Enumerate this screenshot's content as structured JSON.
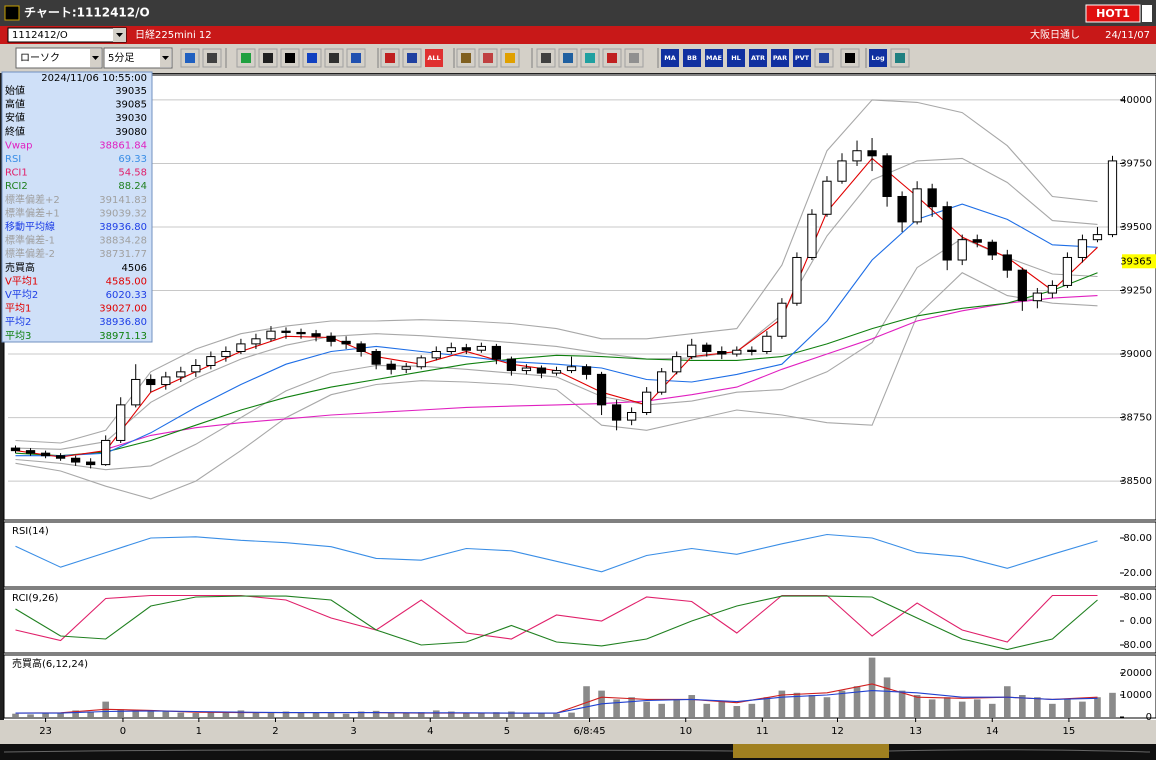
{
  "window": {
    "title": "チャート:1112412/O",
    "hot": "HOT1"
  },
  "header": {
    "code": "1112412/O",
    "name": "日経225mini 12",
    "session": "大阪日通し",
    "date": "24/11/07"
  },
  "toolbar": {
    "chart_type": "ローソク",
    "interval": "5分足",
    "buttons": [
      "ALL",
      "MA",
      "BB",
      "MAE",
      "HL",
      "ATR",
      "PAR",
      "PVT",
      "Log"
    ]
  },
  "info_panel": {
    "datetime": "2024/11/06  10:55:00",
    "rows": [
      {
        "label": "始値",
        "value": "39035",
        "color": "#000"
      },
      {
        "label": "高値",
        "value": "39085",
        "color": "#000"
      },
      {
        "label": "安値",
        "value": "39030",
        "color": "#000"
      },
      {
        "label": "終値",
        "value": "39080",
        "color": "#000"
      },
      {
        "label": "Vwap",
        "value": "38861.84",
        "color": "#e020c0"
      },
      {
        "label": "RSI",
        "value": "69.33",
        "color": "#3a8ee6"
      },
      {
        "label": "RCI1",
        "value": "54.58",
        "color": "#e0206a"
      },
      {
        "label": "RCI2",
        "value": "88.24",
        "color": "#208020"
      },
      {
        "label": "標準偏差+2",
        "value": "39141.83",
        "color": "#a0a0a0"
      },
      {
        "label": "標準偏差+1",
        "value": "39039.32",
        "color": "#a0a0a0"
      },
      {
        "label": "移動平均線",
        "value": "38936.80",
        "color": "#1e3ee6"
      },
      {
        "label": "標準偏差-1",
        "value": "38834.28",
        "color": "#a0a0a0"
      },
      {
        "label": "標準偏差-2",
        "value": "38731.77",
        "color": "#a0a0a0"
      },
      {
        "label": "売買高",
        "value": "4506",
        "color": "#000"
      },
      {
        "label": "V平均1",
        "value": "4585.00",
        "color": "#e00000"
      },
      {
        "label": "V平均2",
        "value": "6020.33",
        "color": "#1e3ee6"
      },
      {
        "label": "平均1",
        "value": "39027.00",
        "color": "#e00000"
      },
      {
        "label": "平均2",
        "value": "38936.80",
        "color": "#1e3ee6"
      },
      {
        "label": "平均3",
        "value": "38971.13",
        "color": "#108010"
      }
    ]
  },
  "chart_data": [
    {
      "type": "candlestick",
      "xlim": [
        -0.5,
        73.5
      ],
      "ylim": [
        38347,
        40098
      ],
      "yticks": [
        38500,
        38750,
        39000,
        39250,
        39500,
        39750,
        40000
      ],
      "grid": true,
      "last_price": 39365,
      "up_color": "#ffffff",
      "down_color": "#000000",
      "x": [
        0,
        3,
        6,
        9,
        12,
        15,
        18,
        21,
        24,
        27,
        30,
        33,
        36,
        39,
        42,
        45,
        48,
        51,
        54,
        57,
        60,
        63,
        66,
        69,
        72
      ],
      "ohlc": [
        [
          38630,
          38640,
          38610,
          38620
        ],
        [
          38620,
          38630,
          38600,
          38610
        ],
        [
          38610,
          38620,
          38590,
          38600
        ],
        [
          38600,
          38610,
          38580,
          38590
        ],
        [
          38590,
          38600,
          38560,
          38575
        ],
        [
          38575,
          38590,
          38550,
          38565
        ],
        [
          38565,
          38680,
          38560,
          38660
        ],
        [
          38660,
          38830,
          38650,
          38800
        ],
        [
          38800,
          38960,
          38790,
          38900
        ],
        [
          38900,
          38920,
          38850,
          38880
        ],
        [
          38880,
          38930,
          38860,
          38910
        ],
        [
          38910,
          38950,
          38890,
          38930
        ],
        [
          38930,
          38980,
          38910,
          38955
        ],
        [
          38955,
          39010,
          38940,
          38990
        ],
        [
          38990,
          39030,
          38970,
          39010
        ],
        [
          39010,
          39060,
          39000,
          39040
        ],
        [
          39040,
          39080,
          39020,
          39060
        ],
        [
          39060,
          39110,
          39050,
          39090
        ],
        [
          39090,
          39105,
          39060,
          39085
        ],
        [
          39085,
          39100,
          39060,
          39080
        ],
        [
          39080,
          39095,
          39050,
          39070
        ],
        [
          39070,
          39085,
          39030,
          39050
        ],
        [
          39050,
          39070,
          39020,
          39040
        ],
        [
          39040,
          39050,
          38990,
          39010
        ],
        [
          39010,
          39020,
          38940,
          38960
        ],
        [
          38960,
          38975,
          38920,
          38940
        ],
        [
          38940,
          38965,
          38925,
          38950
        ],
        [
          38950,
          38995,
          38940,
          38985
        ],
        [
          38985,
          39030,
          38975,
          39010
        ],
        [
          39010,
          39045,
          39000,
          39025
        ],
        [
          39025,
          39040,
          39000,
          39015
        ],
        [
          39015,
          39045,
          39005,
          39030
        ],
        [
          39030,
          39040,
          38960,
          38980
        ],
        [
          38980,
          38990,
          38915,
          38935
        ],
        [
          38935,
          38960,
          38920,
          38945
        ],
        [
          38945,
          38955,
          38905,
          38925
        ],
        [
          38925,
          38950,
          38915,
          38935
        ],
        [
          38935,
          38990,
          38925,
          38950
        ],
        [
          38950,
          38960,
          38900,
          38920
        ],
        [
          38920,
          38930,
          38760,
          38800
        ],
        [
          38800,
          38820,
          38700,
          38740
        ],
        [
          38740,
          38790,
          38720,
          38770
        ],
        [
          38770,
          38870,
          38760,
          38850
        ],
        [
          38850,
          38945,
          38840,
          38930
        ],
        [
          38930,
          39010,
          38920,
          38990
        ],
        [
          38990,
          39060,
          38980,
          39035
        ],
        [
          39035,
          39045,
          38990,
          39010
        ],
        [
          39010,
          39030,
          38980,
          39000
        ],
        [
          39000,
          39030,
          38990,
          39015
        ],
        [
          39015,
          39030,
          38995,
          39010
        ],
        [
          39010,
          39090,
          39000,
          39070
        ],
        [
          39070,
          39220,
          39060,
          39200
        ],
        [
          39200,
          39400,
          39190,
          39380
        ],
        [
          39380,
          39570,
          39370,
          39550
        ],
        [
          39550,
          39700,
          39540,
          39680
        ],
        [
          39680,
          39790,
          39670,
          39760
        ],
        [
          39760,
          39840,
          39740,
          39800
        ],
        [
          39800,
          39850,
          39720,
          39780
        ],
        [
          39780,
          39790,
          39580,
          39620
        ],
        [
          39620,
          39640,
          39480,
          39520
        ],
        [
          39520,
          39680,
          39510,
          39650
        ],
        [
          39650,
          39670,
          39540,
          39580
        ],
        [
          39580,
          39600,
          39330,
          39370
        ],
        [
          39370,
          39470,
          39350,
          39450
        ],
        [
          39450,
          39470,
          39420,
          39440
        ],
        [
          39440,
          39450,
          39370,
          39390
        ],
        [
          39390,
          39410,
          39300,
          39330
        ],
        [
          39330,
          39340,
          39170,
          39210
        ],
        [
          39210,
          39260,
          39180,
          39240
        ],
        [
          39240,
          39290,
          39220,
          39270
        ],
        [
          39270,
          39400,
          39260,
          39380
        ],
        [
          39380,
          39470,
          39360,
          39450
        ],
        [
          39450,
          39500,
          39440,
          39470
        ],
        [
          39470,
          39780,
          39460,
          39760
        ]
      ],
      "series": [
        {
          "color": "#a8a8a8",
          "values": [
            38660,
            38650,
            38700,
            38930,
            39020,
            39080,
            39110,
            39130,
            39130,
            39135,
            39130,
            39120,
            39100,
            39060,
            39060,
            39080,
            39100,
            39350,
            39800,
            40000,
            39990,
            39950,
            39820,
            39620,
            39600
          ]
        },
        {
          "color": "#a8a8a8",
          "values": [
            38630,
            38625,
            38655,
            38810,
            38905,
            38980,
            39035,
            39070,
            39080,
            39072,
            39060,
            39045,
            39030,
            39003,
            38980,
            38985,
            39010,
            39155,
            39465,
            39685,
            39760,
            39770,
            39675,
            39525,
            39510
          ]
        },
        {
          "color": "#a8a8a8",
          "values": [
            38585,
            38570,
            38545,
            38560,
            38645,
            38750,
            38855,
            38925,
            38955,
            38952,
            38940,
            38925,
            38910,
            38833,
            38800,
            38815,
            38850,
            38860,
            38930,
            39045,
            39340,
            39455,
            39380,
            39315,
            39305
          ]
        },
        {
          "color": "#a8a8a8",
          "values": [
            38570,
            38540,
            38480,
            38430,
            38500,
            38620,
            38750,
            38840,
            38880,
            38895,
            38890,
            38880,
            38860,
            38720,
            38700,
            38740,
            38780,
            38760,
            38730,
            38720,
            39150,
            39320,
            39230,
            39200,
            39190
          ]
        },
        {
          "color": "#e020c0",
          "values": [
            null,
            null,
            38625,
            38680,
            38710,
            38730,
            38745,
            38760,
            38770,
            38780,
            38790,
            38795,
            38800,
            38805,
            38815,
            38840,
            38870,
            38940,
            39000,
            39060,
            39130,
            39170,
            39200,
            39220,
            39230
          ]
        },
        {
          "color": "#108010",
          "values": [
            38610,
            38600,
            38615,
            38660,
            38720,
            38780,
            38830,
            38870,
            38900,
            38930,
            38960,
            38980,
            38995,
            38990,
            38980,
            38975,
            38975,
            38990,
            39040,
            39100,
            39150,
            39180,
            39200,
            39250,
            39320
          ]
        },
        {
          "color": "#1e6ee6",
          "values": [
            38600,
            38600,
            38610,
            38690,
            38790,
            38880,
            38960,
            39010,
            39030,
            39010,
            38990,
            38970,
            38960,
            38945,
            38900,
            38890,
            38920,
            38960,
            39130,
            39370,
            39530,
            39590,
            39530,
            39430,
            39420
          ]
        },
        {
          "color": "#e00000",
          "values": [
            38620,
            38595,
            38620,
            38850,
            38930,
            39010,
            39070,
            39065,
            38990,
            38960,
            39010,
            38960,
            38935,
            38850,
            38800,
            38990,
            39010,
            39140,
            39560,
            39770,
            39620,
            39460,
            39380,
            39250,
            39420
          ]
        }
      ]
    },
    {
      "type": "line",
      "title": "RSI(14)",
      "ylim": [
        -4,
        107.4
      ],
      "yticks": [
        {
          "value": 80,
          "label": "80.00"
        },
        {
          "value": 20,
          "label": "20.00"
        }
      ],
      "series": [
        {
          "color": "#3a8ee6",
          "values": [
            66,
            30,
            55,
            80,
            82,
            76,
            72,
            65,
            45,
            42,
            62,
            58,
            40,
            22,
            50,
            62,
            52,
            70,
            86,
            80,
            55,
            48,
            28,
            52,
            75
          ]
        }
      ]
    },
    {
      "type": "line",
      "title": "RCI(9,26)",
      "ylim": [
        -106.7,
        106.7
      ],
      "yticks": [
        {
          "value": 80,
          "label": "80.00"
        },
        {
          "value": 0,
          "label": "0.00"
        },
        {
          "value": -80,
          "label": "-80.00"
        }
      ],
      "series": [
        {
          "color": "#e0206a",
          "values": [
            -30,
            -65,
            75,
            85,
            85,
            85,
            70,
            10,
            -30,
            70,
            -40,
            -60,
            20,
            0,
            80,
            65,
            -40,
            85,
            85,
            -50,
            60,
            -30,
            -70,
            85,
            85
          ]
        },
        {
          "color": "#208020",
          "values": [
            40,
            -50,
            -60,
            50,
            80,
            83,
            83,
            70,
            -30,
            -80,
            -70,
            -15,
            -70,
            -83,
            -60,
            0,
            50,
            83,
            83,
            80,
            10,
            -60,
            -95,
            -60,
            70
          ]
        }
      ]
    },
    {
      "type": "bar",
      "title": "売買高(6,12,24)",
      "color": "#8a8a8a",
      "ylim": [
        -450,
        28200
      ],
      "yticks": [
        0,
        10000,
        20000
      ],
      "values": [
        1500,
        1200,
        1800,
        2000,
        3000,
        2500,
        7000,
        3500,
        3000,
        3000,
        2500,
        2000,
        1800,
        2200,
        2500,
        3000,
        2000,
        1800,
        2500,
        2200,
        2000,
        1800,
        1500,
        2500,
        2800,
        2000,
        1800,
        2200,
        3000,
        2500,
        2000,
        1800,
        2200,
        2500,
        2000,
        1800,
        1500,
        2000,
        14000,
        12000,
        8000,
        9000,
        7000,
        6000,
        8000,
        10000,
        6000,
        7000,
        5000,
        6000,
        9000,
        12000,
        11000,
        10000,
        9000,
        12000,
        14000,
        27000,
        18000,
        12000,
        10000,
        8000,
        9000,
        7000,
        8000,
        6000,
        14000,
        10000,
        9000,
        6000,
        8000,
        7000,
        9000,
        11000
      ],
      "series": [
        {
          "color": "#d02020",
          "values": [
            1800,
            1900,
            3500,
            3000,
            2200,
            2000,
            2000,
            2000,
            2000,
            1800,
            1800,
            1800,
            1800,
            9000,
            8000,
            8000,
            6500,
            10000,
            11000,
            15000,
            9000,
            8500,
            9000,
            8000,
            9000
          ]
        },
        {
          "color": "#2040d0",
          "values": [
            1800,
            1800,
            2500,
            2800,
            2500,
            2200,
            2000,
            2000,
            2000,
            1900,
            1900,
            1800,
            1800,
            6000,
            7500,
            8000,
            7000,
            9000,
            10000,
            12000,
            11000,
            9000,
            9000,
            8000,
            8500
          ]
        }
      ],
      "xticks": [
        {
          "value": 2.0,
          "label": "23"
        },
        {
          "value": 7.15,
          "label": "0"
        },
        {
          "value": 12.2,
          "label": "1"
        },
        {
          "value": 17.3,
          "label": "2"
        },
        {
          "value": 22.5,
          "label": "3"
        },
        {
          "value": 27.6,
          "label": "4"
        },
        {
          "value": 32.7,
          "label": "5"
        },
        {
          "value": 38.2,
          "label": "6/8:45"
        },
        {
          "value": 44.6,
          "label": "10"
        },
        {
          "value": 49.7,
          "label": "11"
        },
        {
          "value": 54.7,
          "label": "12"
        },
        {
          "value": 59.9,
          "label": "13"
        },
        {
          "value": 65.0,
          "label": "14"
        },
        {
          "value": 70.1,
          "label": "15"
        }
      ]
    }
  ]
}
